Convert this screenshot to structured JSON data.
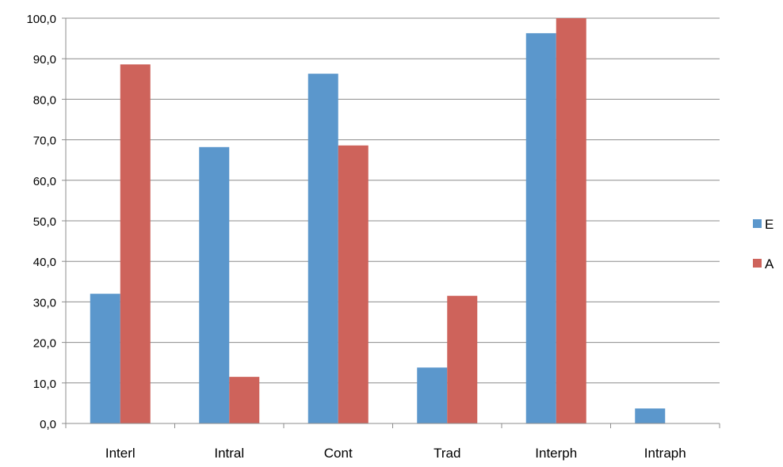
{
  "chart_data": {
    "type": "bar",
    "categories": [
      "Interl",
      "Intral",
      "Cont",
      "Trad",
      "Interph",
      "Intraph"
    ],
    "series": [
      {
        "name": "E",
        "values": [
          32.0,
          68.2,
          86.3,
          13.8,
          96.3,
          3.7
        ],
        "color": "#5B97CC"
      },
      {
        "name": "A",
        "values": [
          88.6,
          11.5,
          68.6,
          31.5,
          100.0,
          0.0
        ],
        "color": "#CE635B"
      }
    ],
    "ylim": [
      0,
      100
    ],
    "yticks": [
      "0,0",
      "10,0",
      "20,0",
      "30,0",
      "40,0",
      "50,0",
      "60,0",
      "70,0",
      "80,0",
      "90,0",
      "100,0"
    ],
    "grid": true,
    "legend_position": "right",
    "title": "",
    "xlabel": "",
    "ylabel": ""
  }
}
